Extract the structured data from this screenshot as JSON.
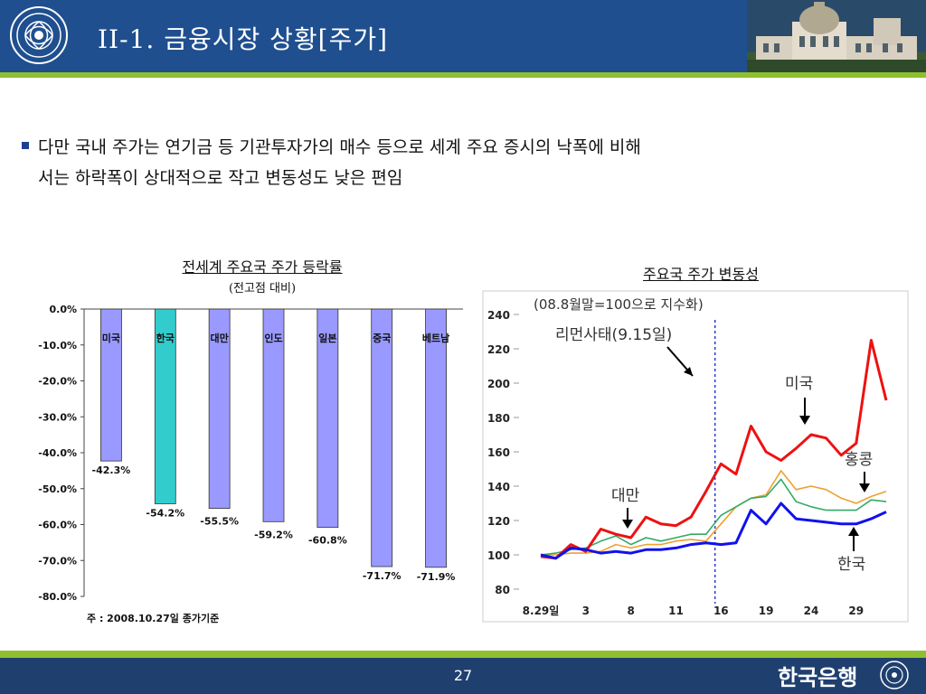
{
  "header": {
    "title": "II-1. 금융시장 상황[주가]"
  },
  "bullet": {
    "line1": "다만 국내 주가는 연기금 등 기관투자가의 매수 등으로 세계 주요 증시의 낙폭에 비해",
    "line2": "서는 하락폭이 상대적으로 작고 변동성도 낮은 편임"
  },
  "bar_chart_text": {
    "title": "전세계 주요국 주가 등락률",
    "subtitle": "(전고점 대비)",
    "note": "주 : 2008.10.27일 종가기준"
  },
  "line_chart_text": {
    "title": "주요국 주가 변동성",
    "subtitle": "(08.8월말=100으로 지수화)",
    "event_label": "리먼사태(9.15일)",
    "label_us": "미국",
    "label_hk": "홍콩",
    "label_tw": "대만",
    "label_kr": "한국"
  },
  "footer": {
    "page": "27",
    "brand": "한국은행"
  },
  "colors": {
    "header": "#1f4f8f",
    "stripe": "#8fbf2f",
    "bar_default": "#9999ff",
    "bar_korea": "#33cccc",
    "us": "#ee1111",
    "hk": "#f0a030",
    "tw": "#33aa66",
    "kr": "#1111ee",
    "event_line": "#2233cc"
  },
  "chart_data": [
    {
      "type": "bar",
      "title": "전세계 주요국 주가 등락률",
      "subtitle": "(전고점 대비)",
      "categories": [
        "미국",
        "한국",
        "대만",
        "인도",
        "일본",
        "중국",
        "베트남"
      ],
      "values": [
        -42.3,
        -54.2,
        -55.5,
        -59.2,
        -60.8,
        -71.7,
        -71.9
      ],
      "value_labels": [
        "-42.3%",
        "-54.2%",
        "-55.5%",
        "-59.2%",
        "-60.8%",
        "-71.7%",
        "-71.9%"
      ],
      "ylim": [
        -80,
        0
      ],
      "yticks": [
        "0.0%",
        "-10.0%",
        "-20.0%",
        "-30.0%",
        "-40.0%",
        "-50.0%",
        "-60.0%",
        "-70.0%",
        "-80.0%"
      ],
      "highlight": "한국",
      "note": "주 : 2008.10.27일 종가기준"
    },
    {
      "type": "line",
      "title": "주요국 주가 변동성",
      "subtitle": "(08.8월말=100으로 지수화)",
      "x_tick_labels": [
        "8.29일",
        "3",
        "8",
        "11",
        "16",
        "19",
        "24",
        "29"
      ],
      "x_tick_positions": [
        0,
        3,
        6,
        9,
        12,
        15,
        18,
        21
      ],
      "ylim": [
        80,
        240
      ],
      "yticks": [
        80,
        100,
        120,
        140,
        160,
        180,
        200,
        220,
        240
      ],
      "event": {
        "label": "리먼사태(9.15일)",
        "x": 11
      },
      "series": [
        {
          "name": "미국",
          "x": [
            0,
            1,
            2,
            3,
            4,
            5,
            6,
            7,
            8,
            9,
            10,
            11,
            12,
            13,
            14,
            15,
            16,
            17,
            18,
            19,
            20,
            21,
            22,
            23
          ],
          "values": [
            99,
            98,
            106,
            102,
            115,
            112,
            110,
            122,
            118,
            117,
            122,
            137,
            153,
            147,
            175,
            160,
            155,
            162,
            170,
            168,
            158,
            165,
            225,
            190
          ]
        },
        {
          "name": "홍콩",
          "x": [
            0,
            1,
            2,
            3,
            4,
            5,
            6,
            7,
            8,
            9,
            10,
            11,
            12,
            13,
            14,
            15,
            16,
            17,
            18,
            19,
            20,
            21,
            22,
            23
          ],
          "values": [
            100,
            100,
            101,
            101,
            102,
            106,
            104,
            106,
            106,
            108,
            109,
            108,
            118,
            128,
            133,
            135,
            149,
            138,
            140,
            138,
            133,
            130,
            134,
            137
          ]
        },
        {
          "name": "대만",
          "x": [
            0,
            1,
            2,
            3,
            4,
            5,
            6,
            7,
            8,
            9,
            10,
            11,
            12,
            13,
            14,
            15,
            16,
            17,
            18,
            19,
            20,
            21,
            22,
            23
          ],
          "values": [
            100,
            101,
            103,
            104,
            108,
            111,
            106,
            110,
            108,
            110,
            112,
            112,
            123,
            128,
            133,
            134,
            144,
            131,
            128,
            126,
            126,
            126,
            132,
            131
          ]
        },
        {
          "name": "한국",
          "x": [
            0,
            1,
            2,
            3,
            4,
            5,
            6,
            7,
            8,
            9,
            10,
            11,
            12,
            13,
            14,
            15,
            16,
            17,
            18,
            19,
            20,
            21,
            22,
            23
          ],
          "values": [
            100,
            98,
            104,
            103,
            101,
            102,
            101,
            103,
            103,
            104,
            106,
            107,
            106,
            107,
            126,
            118,
            130,
            121,
            120,
            119,
            118,
            118,
            121,
            125
          ]
        }
      ]
    }
  ]
}
